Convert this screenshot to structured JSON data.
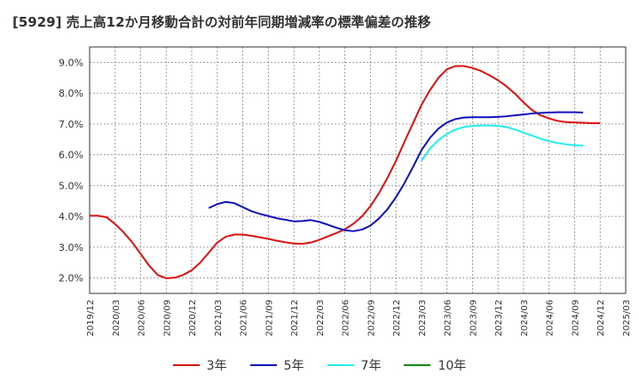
{
  "chart_data": {
    "type": "line",
    "title": "[5929]  売上高12か月移動合計の対前年同期増減率の標準偏差の推移",
    "xlabel": "",
    "ylabel": "",
    "ylim": [
      1.5,
      9.5
    ],
    "grid": true,
    "legend_position": "bottom",
    "y_ticks": [
      "2.0%",
      "3.0%",
      "4.0%",
      "5.0%",
      "6.0%",
      "7.0%",
      "8.0%",
      "9.0%"
    ],
    "y_tick_values": [
      2.0,
      3.0,
      4.0,
      5.0,
      6.0,
      7.0,
      8.0,
      9.0
    ],
    "x_ticks": [
      "2019/12",
      "2020/03",
      "2020/06",
      "2020/09",
      "2020/12",
      "2021/03",
      "2021/06",
      "2021/09",
      "2021/12",
      "2022/03",
      "2022/06",
      "2022/09",
      "2022/12",
      "2023/03",
      "2023/06",
      "2023/09",
      "2023/12",
      "2024/03",
      "2024/06",
      "2024/09",
      "2024/12",
      "2025/03"
    ],
    "series": [
      {
        "name": "3年",
        "color": "#dd1111",
        "start": "2019/12",
        "values": [
          4.02,
          4.02,
          3.97,
          3.75,
          3.48,
          3.16,
          2.78,
          2.4,
          2.1,
          1.99,
          2.01,
          2.1,
          2.25,
          2.5,
          2.82,
          3.15,
          3.34,
          3.41,
          3.41,
          3.37,
          3.32,
          3.27,
          3.21,
          3.16,
          3.12,
          3.11,
          3.15,
          3.24,
          3.35,
          3.46,
          3.58,
          3.76,
          4.0,
          4.33,
          4.75,
          5.25,
          5.8,
          6.42,
          7.02,
          7.62,
          8.1,
          8.5,
          8.78,
          8.88,
          8.88,
          8.82,
          8.72,
          8.58,
          8.42,
          8.22,
          7.98,
          7.7,
          7.45,
          7.28,
          7.18,
          7.1,
          7.06,
          7.05,
          7.04,
          7.03,
          7.03
        ]
      },
      {
        "name": "5年",
        "color": "#1111bb",
        "start": "2021/02",
        "values": [
          4.27,
          4.4,
          4.47,
          4.43,
          4.3,
          4.17,
          4.08,
          4.01,
          3.94,
          3.89,
          3.84,
          3.85,
          3.88,
          3.82,
          3.73,
          3.63,
          3.55,
          3.52,
          3.57,
          3.7,
          3.93,
          4.23,
          4.62,
          5.08,
          5.6,
          6.15,
          6.55,
          6.85,
          7.05,
          7.16,
          7.21,
          7.22,
          7.22,
          7.22,
          7.23,
          7.25,
          7.28,
          7.31,
          7.34,
          7.36,
          7.37,
          7.38,
          7.38,
          7.38,
          7.37
        ]
      },
      {
        "name": "7年",
        "color": "#22eeee",
        "start": "2023/03",
        "values": [
          5.8,
          6.2,
          6.48,
          6.68,
          6.82,
          6.9,
          6.94,
          6.95,
          6.95,
          6.94,
          6.9,
          6.82,
          6.72,
          6.62,
          6.52,
          6.44,
          6.38,
          6.34,
          6.31,
          6.29
        ]
      },
      {
        "name": "10年",
        "color": "#118811",
        "start": "2019/12",
        "values": []
      }
    ]
  }
}
